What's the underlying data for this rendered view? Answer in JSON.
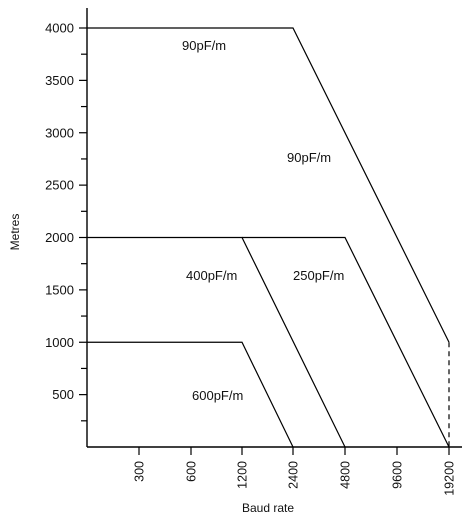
{
  "chart_data": {
    "type": "line",
    "xlabel": "Baud rate",
    "ylabel": "Metres",
    "x_categories": [
      "300",
      "600",
      "1200",
      "2400",
      "4800",
      "9600",
      "19200"
    ],
    "y_ticks": [
      500,
      1000,
      1500,
      2000,
      2500,
      3000,
      3500,
      4000
    ],
    "ylim": [
      0,
      4200
    ],
    "grid": false,
    "series": [
      {
        "name": "90pF/m",
        "points": [
          {
            "x": "0",
            "y": 4000
          },
          {
            "x": "2400",
            "y": 4000
          },
          {
            "x": "19200",
            "y": 1000
          }
        ],
        "dashed_end_to_zero": true
      },
      {
        "name": "250pF/m",
        "points": [
          {
            "x": "1200",
            "y": 2000
          },
          {
            "x": "4800",
            "y": 2000
          },
          {
            "x": "19200",
            "y": 0
          }
        ]
      },
      {
        "name": "400pF/m",
        "points": [
          {
            "x": "0",
            "y": 2000
          },
          {
            "x": "1200",
            "y": 2000
          },
          {
            "x": "4800",
            "y": 0
          }
        ]
      },
      {
        "name": "600pF/m",
        "points": [
          {
            "x": "0",
            "y": 1000
          },
          {
            "x": "1200",
            "y": 1000
          },
          {
            "x": "2400",
            "y": 0
          }
        ]
      }
    ],
    "annotations": [
      "90pF/m",
      "90pF/m",
      "400pF/m",
      "250pF/m",
      "600pF/m"
    ]
  }
}
